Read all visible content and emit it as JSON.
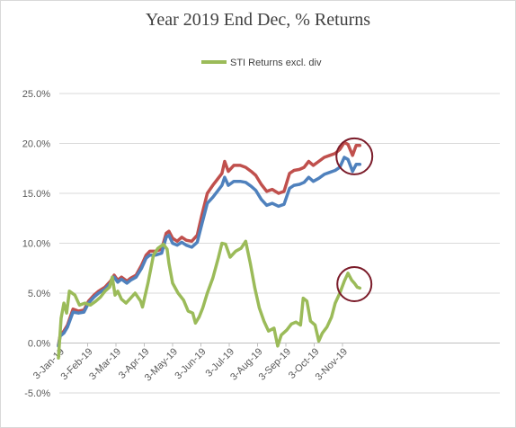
{
  "chart_data": {
    "type": "line",
    "title": "Year 2019 End Dec, % Returns",
    "xlabel": "",
    "ylabel": "",
    "ylim": [
      -5,
      25
    ],
    "y_ticks": [
      "-5.0%",
      "0.0%",
      "5.0%",
      "10.0%",
      "15.0%",
      "20.0%",
      "25.0%"
    ],
    "x_ticks": [
      "3-Jan-19",
      "3-Feb-19",
      "3-Mar-19",
      "3-Apr-19",
      "3-May-19",
      "3-Jun-19",
      "3-Jul-19",
      "3-Aug-19",
      "3-Sep-19",
      "3-Oct-19",
      "3-Nov-19"
    ],
    "grid": true,
    "legend": {
      "position": "top",
      "entries": [
        "STI Returns excl. div"
      ]
    },
    "annotations": [
      "circle around late-November red and blue lines",
      "circle around late-November green line"
    ],
    "series": [
      {
        "name": "",
        "color": "#c0504d",
        "points": [
          [
            "2019-01-02",
            -0.2
          ],
          [
            "2019-01-04",
            0.8
          ],
          [
            "2019-01-08",
            1.2
          ],
          [
            "2019-01-12",
            1.8
          ],
          [
            "2019-01-18",
            3.4
          ],
          [
            "2019-01-24",
            3.2
          ],
          [
            "2019-01-30",
            3.3
          ],
          [
            "2019-02-04",
            4.2
          ],
          [
            "2019-02-10",
            4.8
          ],
          [
            "2019-02-15",
            5.2
          ],
          [
            "2019-02-22",
            5.6
          ],
          [
            "2019-02-28",
            6.2
          ],
          [
            "2019-03-04",
            6.8
          ],
          [
            "2019-03-08",
            6.3
          ],
          [
            "2019-03-12",
            6.6
          ],
          [
            "2019-03-18",
            6.2
          ],
          [
            "2019-03-22",
            6.5
          ],
          [
            "2019-03-28",
            6.8
          ],
          [
            "2019-04-03",
            7.8
          ],
          [
            "2019-04-08",
            8.8
          ],
          [
            "2019-04-12",
            9.2
          ],
          [
            "2019-04-18",
            9.2
          ],
          [
            "2019-04-25",
            9.4
          ],
          [
            "2019-04-30",
            11.0
          ],
          [
            "2019-05-03",
            11.2
          ],
          [
            "2019-05-07",
            10.5
          ],
          [
            "2019-05-12",
            10.2
          ],
          [
            "2019-05-17",
            10.6
          ],
          [
            "2019-05-22",
            10.3
          ],
          [
            "2019-05-28",
            10.2
          ],
          [
            "2019-06-03",
            10.8
          ],
          [
            "2019-06-08",
            12.8
          ],
          [
            "2019-06-14",
            15.0
          ],
          [
            "2019-06-20",
            15.8
          ],
          [
            "2019-06-25",
            16.4
          ],
          [
            "2019-06-30",
            17.0
          ],
          [
            "2019-07-03",
            18.2
          ],
          [
            "2019-07-07",
            17.2
          ],
          [
            "2019-07-13",
            17.8
          ],
          [
            "2019-07-20",
            17.8
          ],
          [
            "2019-07-26",
            17.6
          ],
          [
            "2019-08-01",
            17.2
          ],
          [
            "2019-08-06",
            16.8
          ],
          [
            "2019-08-12",
            15.9
          ],
          [
            "2019-08-18",
            15.2
          ],
          [
            "2019-08-24",
            15.4
          ],
          [
            "2019-08-31",
            15.0
          ],
          [
            "2019-09-06",
            15.2
          ],
          [
            "2019-09-12",
            17.0
          ],
          [
            "2019-09-17",
            17.3
          ],
          [
            "2019-09-23",
            17.4
          ],
          [
            "2019-09-28",
            17.6
          ],
          [
            "2019-10-03",
            18.2
          ],
          [
            "2019-10-08",
            17.8
          ],
          [
            "2019-10-14",
            18.2
          ],
          [
            "2019-10-20",
            18.6
          ],
          [
            "2019-10-26",
            18.8
          ],
          [
            "2019-11-01",
            19.0
          ],
          [
            "2019-11-06",
            19.4
          ],
          [
            "2019-11-11",
            20.1
          ],
          [
            "2019-11-15",
            19.9
          ],
          [
            "2019-11-20",
            18.8
          ],
          [
            "2019-11-24",
            19.8
          ],
          [
            "2019-11-28",
            19.8
          ]
        ]
      },
      {
        "name": "",
        "color": "#4f81bd",
        "points": [
          [
            "2019-01-02",
            -0.3
          ],
          [
            "2019-01-04",
            0.7
          ],
          [
            "2019-01-08",
            1.0
          ],
          [
            "2019-01-12",
            1.6
          ],
          [
            "2019-01-18",
            3.1
          ],
          [
            "2019-01-24",
            3.0
          ],
          [
            "2019-01-30",
            3.1
          ],
          [
            "2019-02-04",
            4.0
          ],
          [
            "2019-02-10",
            4.6
          ],
          [
            "2019-02-15",
            5.0
          ],
          [
            "2019-02-22",
            5.4
          ],
          [
            "2019-02-28",
            6.0
          ],
          [
            "2019-03-04",
            6.6
          ],
          [
            "2019-03-08",
            6.1
          ],
          [
            "2019-03-12",
            6.4
          ],
          [
            "2019-03-18",
            6.0
          ],
          [
            "2019-03-22",
            6.3
          ],
          [
            "2019-03-28",
            6.6
          ],
          [
            "2019-04-03",
            7.5
          ],
          [
            "2019-04-08",
            8.5
          ],
          [
            "2019-04-12",
            8.8
          ],
          [
            "2019-04-18",
            8.8
          ],
          [
            "2019-04-25",
            9.0
          ],
          [
            "2019-04-30",
            10.6
          ],
          [
            "2019-05-03",
            10.8
          ],
          [
            "2019-05-07",
            10.0
          ],
          [
            "2019-05-12",
            9.8
          ],
          [
            "2019-05-17",
            10.1
          ],
          [
            "2019-05-22",
            9.8
          ],
          [
            "2019-05-28",
            9.6
          ],
          [
            "2019-06-03",
            10.1
          ],
          [
            "2019-06-08",
            11.9
          ],
          [
            "2019-06-14",
            14.0
          ],
          [
            "2019-06-20",
            14.6
          ],
          [
            "2019-06-25",
            15.2
          ],
          [
            "2019-06-30",
            15.8
          ],
          [
            "2019-07-03",
            16.6
          ],
          [
            "2019-07-07",
            15.8
          ],
          [
            "2019-07-13",
            16.2
          ],
          [
            "2019-07-20",
            16.2
          ],
          [
            "2019-07-26",
            16.1
          ],
          [
            "2019-08-01",
            15.7
          ],
          [
            "2019-08-06",
            15.3
          ],
          [
            "2019-08-12",
            14.4
          ],
          [
            "2019-08-18",
            13.8
          ],
          [
            "2019-08-24",
            14.0
          ],
          [
            "2019-08-31",
            13.7
          ],
          [
            "2019-09-06",
            13.9
          ],
          [
            "2019-09-12",
            15.5
          ],
          [
            "2019-09-17",
            15.8
          ],
          [
            "2019-09-23",
            15.9
          ],
          [
            "2019-09-28",
            16.1
          ],
          [
            "2019-10-03",
            16.6
          ],
          [
            "2019-10-08",
            16.2
          ],
          [
            "2019-10-14",
            16.5
          ],
          [
            "2019-10-20",
            16.9
          ],
          [
            "2019-10-26",
            17.1
          ],
          [
            "2019-11-01",
            17.3
          ],
          [
            "2019-11-06",
            17.6
          ],
          [
            "2019-11-11",
            18.6
          ],
          [
            "2019-11-15",
            18.4
          ],
          [
            "2019-11-20",
            17.2
          ],
          [
            "2019-11-24",
            17.9
          ],
          [
            "2019-11-28",
            17.9
          ]
        ]
      },
      {
        "name": "STI Returns excl. div",
        "color": "#9bbb59",
        "points": [
          [
            "2019-01-02",
            -1.5
          ],
          [
            "2019-01-05",
            2.5
          ],
          [
            "2019-01-08",
            4.0
          ],
          [
            "2019-01-11",
            3.0
          ],
          [
            "2019-01-14",
            5.2
          ],
          [
            "2019-01-20",
            4.8
          ],
          [
            "2019-01-25",
            3.8
          ],
          [
            "2019-01-31",
            4.0
          ],
          [
            "2019-02-06",
            3.8
          ],
          [
            "2019-02-12",
            4.2
          ],
          [
            "2019-02-17",
            4.6
          ],
          [
            "2019-02-22",
            5.2
          ],
          [
            "2019-02-27",
            5.6
          ],
          [
            "2019-03-02",
            6.6
          ],
          [
            "2019-03-05",
            4.8
          ],
          [
            "2019-03-08",
            5.2
          ],
          [
            "2019-03-12",
            4.4
          ],
          [
            "2019-03-17",
            4.0
          ],
          [
            "2019-03-22",
            4.5
          ],
          [
            "2019-03-27",
            5.0
          ],
          [
            "2019-04-02",
            4.2
          ],
          [
            "2019-04-04",
            3.6
          ],
          [
            "2019-04-10",
            6.0
          ],
          [
            "2019-04-16",
            8.8
          ],
          [
            "2019-04-21",
            9.5
          ],
          [
            "2019-04-27",
            9.9
          ],
          [
            "2019-05-01",
            9.4
          ],
          [
            "2019-05-03",
            8.0
          ],
          [
            "2019-05-07",
            6.0
          ],
          [
            "2019-05-13",
            5.0
          ],
          [
            "2019-05-19",
            4.3
          ],
          [
            "2019-05-24",
            3.2
          ],
          [
            "2019-05-29",
            3.0
          ],
          [
            "2019-06-01",
            2.0
          ],
          [
            "2019-06-05",
            2.6
          ],
          [
            "2019-06-09",
            3.5
          ],
          [
            "2019-06-14",
            5.0
          ],
          [
            "2019-06-20",
            6.5
          ],
          [
            "2019-06-26",
            8.5
          ],
          [
            "2019-06-30",
            10.0
          ],
          [
            "2019-07-04",
            9.9
          ],
          [
            "2019-07-09",
            8.6
          ],
          [
            "2019-07-15",
            9.2
          ],
          [
            "2019-07-21",
            9.5
          ],
          [
            "2019-07-26",
            10.2
          ],
          [
            "2019-07-31",
            8.0
          ],
          [
            "2019-08-05",
            5.5
          ],
          [
            "2019-08-10",
            3.5
          ],
          [
            "2019-08-15",
            2.2
          ],
          [
            "2019-08-20",
            1.2
          ],
          [
            "2019-08-26",
            1.5
          ],
          [
            "2019-08-30",
            -0.3
          ],
          [
            "2019-09-03",
            0.8
          ],
          [
            "2019-09-09",
            1.3
          ],
          [
            "2019-09-14",
            1.9
          ],
          [
            "2019-09-19",
            2.1
          ],
          [
            "2019-09-24",
            1.8
          ],
          [
            "2019-09-27",
            4.5
          ],
          [
            "2019-10-01",
            4.2
          ],
          [
            "2019-10-05",
            2.2
          ],
          [
            "2019-10-10",
            1.8
          ],
          [
            "2019-10-14",
            0.2
          ],
          [
            "2019-10-18",
            1.0
          ],
          [
            "2019-10-23",
            1.6
          ],
          [
            "2019-10-28",
            2.6
          ],
          [
            "2019-11-01",
            4.0
          ],
          [
            "2019-11-06",
            5.0
          ],
          [
            "2019-11-11",
            6.2
          ],
          [
            "2019-11-15",
            7.0
          ],
          [
            "2019-11-19",
            6.3
          ],
          [
            "2019-11-22",
            6.0
          ],
          [
            "2019-11-25",
            5.6
          ],
          [
            "2019-11-28",
            5.5
          ]
        ]
      }
    ]
  }
}
